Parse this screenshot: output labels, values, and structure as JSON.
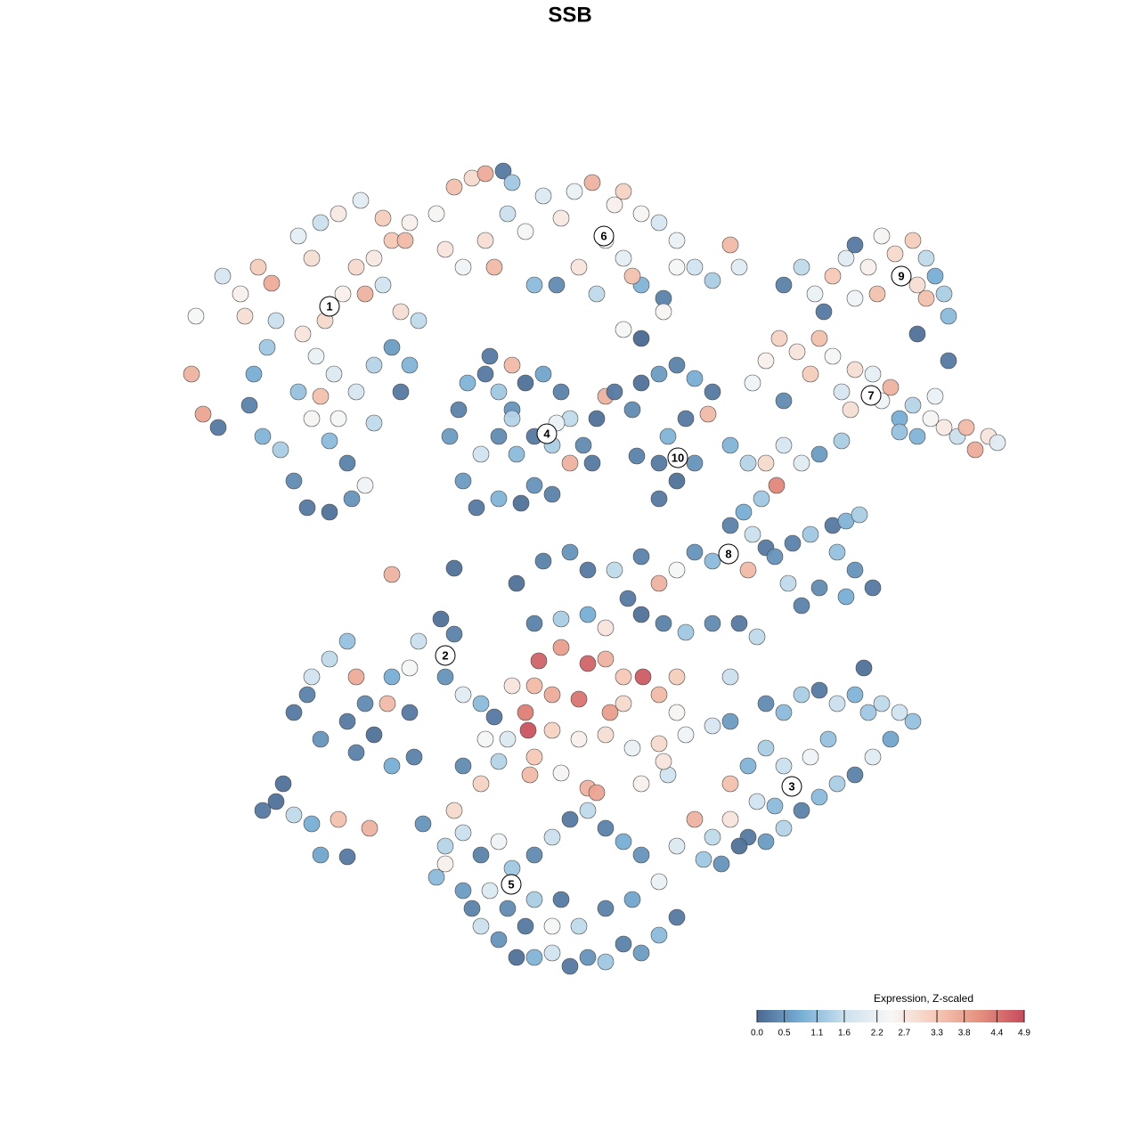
{
  "chart_data": {
    "type": "scatter",
    "title": "SSB",
    "x": [
      2,
      1.5,
      2.8,
      4.5,
      5,
      7,
      7.5,
      9,
      10.5,
      11,
      10,
      8.5,
      8,
      9.5,
      11.5,
      13,
      14.5,
      17,
      19.5,
      21,
      19,
      17,
      15,
      13.5,
      16,
      17.5,
      15.5,
      14,
      16.5,
      18.5,
      20,
      22,
      24,
      26,
      23,
      21,
      25,
      27,
      24,
      26,
      22,
      20,
      18,
      15,
      13.5,
      16,
      18,
      20.5,
      23,
      25.5,
      25,
      22,
      29,
      31,
      33,
      34.5,
      36.5,
      37.5,
      30,
      32,
      34.5,
      35.5,
      37,
      39,
      41,
      43,
      44.5,
      46.5,
      49,
      50,
      52,
      54,
      56,
      58,
      60,
      62,
      63,
      40,
      42.5,
      45,
      47,
      50,
      52,
      54.5,
      56,
      48,
      51,
      68,
      70,
      71.5,
      73.5,
      75,
      76,
      77.5,
      79,
      80.5,
      82.5,
      84,
      85,
      86,
      84,
      83,
      86.5,
      83,
      86.5,
      78.5,
      76,
      72.5,
      64.5,
      66,
      67.5,
      69.5,
      71,
      72,
      73.5,
      74.5,
      76,
      78,
      79,
      80,
      81,
      82.5,
      84.5,
      86,
      87.5,
      88.5,
      89.5,
      91,
      92,
      85,
      83,
      81,
      75.5,
      68,
      30.5,
      31.5,
      32.5,
      34.5,
      36,
      37.5,
      39,
      41,
      43,
      44,
      45.5,
      46.5,
      44,
      42,
      40,
      38,
      36,
      34,
      32,
      33.5,
      36,
      38.5,
      40,
      42,
      37.5,
      42.5,
      48,
      47,
      37.5,
      35,
      49,
      51,
      52,
      54,
      56,
      58,
      60,
      59.5,
      57,
      55,
      54,
      56,
      58,
      54,
      51.5,
      52,
      54.5,
      50,
      62,
      64,
      66,
      67.2,
      65.5,
      63.5,
      62,
      64.5,
      66,
      64,
      67,
      69,
      71,
      73.5,
      75,
      76.5,
      74,
      76,
      78,
      75,
      72,
      70,
      68.5,
      68,
      70,
      72,
      74.5,
      38,
      41,
      44,
      46,
      49,
      52,
      54,
      56,
      58,
      60,
      50.5,
      52,
      54.5,
      57,
      60,
      63,
      65,
      40,
      43,
      46,
      48,
      43,
      46,
      48,
      50,
      52.2,
      40.5,
      37.5,
      40,
      42,
      45,
      48.5,
      50,
      54,
      56,
      56,
      39,
      39.3,
      42,
      45,
      48,
      51,
      54,
      57,
      60,
      62,
      37,
      34.5,
      36,
      40,
      46,
      47,
      52,
      55,
      54.5,
      43,
      39.5,
      34,
      32,
      62,
      13,
      14.5,
      15,
      17,
      19,
      20,
      21,
      19,
      16,
      20,
      22,
      23.5,
      24,
      26,
      27,
      29.5,
      31,
      30,
      32,
      34,
      35.5,
      26,
      26.5,
      24,
      9.5,
      11,
      13,
      15,
      18,
      21.5,
      16,
      19,
      11.8,
      24,
      31,
      66,
      68,
      70,
      72,
      74,
      76,
      77.5,
      79,
      81,
      82.5,
      80,
      78,
      76,
      74,
      72,
      70,
      68,
      66,
      64,
      62,
      60,
      58,
      59,
      61,
      63,
      66,
      64,
      68,
      71,
      73,
      69,
      67,
      77,
      56,
      62,
      65,
      27.5,
      29,
      30,
      31,
      32,
      34,
      36,
      37.5,
      40,
      42,
      44,
      46,
      48,
      50,
      52,
      54,
      56,
      54,
      52,
      50,
      48,
      46,
      44,
      42,
      40,
      38,
      36,
      34,
      33,
      35,
      32,
      37,
      40,
      43,
      45,
      48,
      51,
      42,
      39,
      30
    ],
    "y": [
      74.5,
      68,
      63.5,
      62,
      79,
      77,
      74.5,
      80,
      78.2,
      74,
      71,
      68,
      64.5,
      61,
      59.5,
      56,
      53,
      52.5,
      54,
      55.5,
      58,
      60.5,
      63,
      66,
      65.5,
      68,
      70,
      72.5,
      74,
      77,
      80,
      81,
      83,
      85,
      78,
      77,
      75,
      74,
      71,
      69,
      69,
      66,
      63,
      81,
      83.5,
      85,
      86,
      87.5,
      85.5,
      83,
      66,
      62.5,
      86,
      89,
      90,
      90.5,
      90.8,
      89.5,
      82,
      80,
      83,
      80,
      86,
      84,
      88,
      85.5,
      88.5,
      89.5,
      87,
      88.5,
      86,
      85,
      83,
      80,
      78.5,
      82.5,
      80,
      78,
      78,
      80,
      77,
      81,
      78,
      76.5,
      80,
      83,
      79,
      78,
      80,
      77,
      79,
      81,
      82.5,
      80,
      83.5,
      81.5,
      83,
      81,
      79,
      77,
      76.5,
      78,
      74.5,
      72.5,
      69.5,
      77,
      76.5,
      75,
      67,
      69.5,
      72,
      70.5,
      68,
      72,
      70,
      66,
      68.5,
      68,
      65,
      66.5,
      63,
      64.5,
      63,
      62,
      61,
      62,
      59.5,
      61,
      60.3,
      65.5,
      61,
      61.5,
      64,
      65,
      61,
      64,
      67,
      68,
      66,
      64,
      67,
      68,
      66,
      63,
      60,
      58,
      58,
      60,
      61,
      59,
      61,
      59,
      56,
      53,
      54,
      53.5,
      55.5,
      54.5,
      63,
      62.5,
      65.5,
      63,
      69,
      70,
      66,
      64,
      67,
      68,
      69,
      67.5,
      66,
      63.5,
      63,
      61,
      58,
      56,
      58,
      54,
      58.8,
      72,
      75,
      73,
      60,
      58,
      58,
      55.5,
      54,
      52.5,
      51,
      50,
      48.5,
      46,
      47.5,
      49,
      50,
      51,
      51.5,
      52.2,
      48,
      46,
      44,
      43,
      44,
      42,
      44.5,
      60,
      58,
      59,
      60.5,
      44.5,
      47,
      48,
      46,
      46,
      47.5,
      44.5,
      46,
      48,
      47,
      42.8,
      41,
      40,
      39,
      40,
      40,
      38.5,
      40,
      40.5,
      41,
      39.5,
      37.3,
      35.5,
      36,
      34,
      34,
      35.8,
      33,
      33,
      32,
      31.5,
      30,
      31,
      32,
      34,
      30,
      30,
      28,
      28,
      27,
      27.5,
      26,
      26.5,
      27.5,
      28.5,
      29,
      27,
      27,
      24.5,
      25,
      21.5,
      21,
      22,
      23,
      24.5,
      23.2,
      23,
      22,
      24,
      34,
      30,
      32,
      34,
      36,
      38,
      34,
      31,
      29,
      27,
      25.5,
      27.5,
      31,
      34,
      35,
      38,
      40.5,
      38.8,
      34,
      32,
      31,
      29.5,
      30,
      25,
      24,
      19,
      20,
      18.5,
      17.5,
      18,
      17,
      14,
      13.8,
      22,
      45.5,
      46.2,
      31,
      30,
      32,
      32.5,
      31,
      32,
      30,
      31,
      30,
      29,
      27,
      25,
      23,
      22,
      20.5,
      19,
      17,
      15.5,
      16,
      18,
      16,
      18,
      13.5,
      13,
      15,
      26,
      24,
      24,
      25,
      27,
      21.7,
      19.5,
      35,
      15,
      22,
      20,
      17.5,
      11.5,
      15,
      19,
      16.5,
      14,
      15.5,
      12.5,
      14,
      16,
      18,
      19,
      17,
      15.5,
      14,
      11,
      7,
      5,
      3,
      4,
      2,
      2.5,
      1.5,
      3,
      2.5,
      2.5,
      4.5,
      6,
      8,
      10,
      10,
      8,
      9,
      9,
      6,
      8,
      9,
      6,
      6,
      13
    ],
    "values": [
      2.4,
      3.6,
      3.8,
      0.2,
      1.8,
      2.6,
      2.9,
      3.2,
      3.7,
      1.6,
      1.2,
      0.8,
      0.3,
      0.9,
      1.3,
      0.4,
      0.2,
      0.1,
      0.5,
      2.3,
      0.3,
      1.0,
      2.5,
      1.1,
      3.4,
      1.9,
      2.2,
      2.8,
      3.0,
      2.6,
      3.0,
      2.7,
      3.3,
      2.6,
      1.7,
      3.6,
      2.9,
      1.5,
      0.6,
      0.9,
      1.4,
      1.8,
      2.4,
      2.9,
      2.1,
      1.6,
      2.7,
      2.0,
      3.2,
      3.5,
      0.2,
      1.5,
      2.5,
      3.4,
      3.0,
      3.7,
      0.2,
      1.2,
      2.8,
      2.3,
      2.9,
      3.5,
      1.6,
      2.4,
      1.9,
      2.7,
      2.2,
      3.6,
      2.6,
      3.1,
      2.5,
      1.8,
      2.2,
      1.7,
      1.3,
      3.5,
      2.0,
      1.0,
      0.4,
      2.8,
      1.5,
      2.1,
      0.9,
      0.3,
      2.4,
      2.6,
      3.4,
      0.3,
      1.5,
      2.2,
      3.3,
      2.0,
      0.2,
      2.6,
      2.5,
      3.0,
      3.2,
      1.5,
      0.8,
      1.3,
      3.4,
      2.9,
      1.0,
      0.1,
      0.2,
      3.4,
      2.3,
      0.2,
      2.3,
      2.6,
      3.1,
      2.8,
      3.2,
      3.4,
      2.4,
      1.8,
      2.9,
      2.1,
      2.3,
      3.6,
      0.8,
      1.4,
      2.5,
      2.7,
      1.6,
      3.5,
      3.7,
      2.8,
      2.0,
      2.2,
      0.9,
      1.1,
      2.9,
      0.4,
      0.6,
      0.3,
      0.9,
      0.2,
      1.2,
      0.5,
      0.1,
      0.7,
      0.3,
      1.5,
      0.4,
      0.2,
      3.6,
      1.3,
      0.2,
      1.0,
      0.4,
      1.7,
      0.6,
      0.2,
      0.9,
      0.1,
      0.5,
      0.3,
      1.4,
      2.2,
      3.6,
      0.1,
      3.5,
      0.2,
      0.2,
      0.4,
      0.1,
      0.6,
      0.3,
      0.8,
      0.2,
      3.5,
      0.2,
      0.9,
      0.2,
      0.1,
      0.5,
      0.2,
      0.3,
      0.0,
      2.5,
      2.4,
      0.9,
      1.4,
      3.0,
      4.2,
      1.2,
      0.8,
      0.3,
      1.6,
      0.2,
      3.5,
      0.5,
      0.3,
      1.2,
      0.2,
      0.9,
      1.3,
      1.1,
      0.5,
      0.2,
      0.8,
      0.4,
      0.3,
      1.5,
      1.8,
      2.0,
      0.6,
      1.3,
      0.1,
      0.3,
      0.5,
      0.2,
      1.5,
      0.3,
      3.6,
      2.4,
      0.5,
      1.0,
      0.2,
      0.1,
      0.3,
      1.2,
      0.4,
      0.2,
      1.5,
      0.3,
      1.3,
      0.8,
      2.8,
      3.9,
      4.6,
      3.6,
      3.3,
      4.7,
      4.6,
      2.8,
      3.5,
      3.7,
      4.4,
      3.9,
      3.0,
      3.5,
      3.2,
      2.5,
      4.3,
      4.8,
      3.1,
      2.6,
      2.9,
      2.2,
      3.0,
      2.3,
      1.8,
      0.6,
      1.9,
      2.4,
      1.4,
      3.3,
      3.6,
      3.8,
      2.6,
      1.7,
      2.8,
      2.5,
      3.5,
      3.1,
      0.4,
      1.6,
      0.2,
      0.3,
      1.7,
      1.5,
      1.1,
      3.7,
      0.4,
      0.2,
      0.5,
      0.3,
      0.1,
      3.5,
      0.8,
      2.4,
      1.6,
      0.1,
      0.3,
      0.5,
      2.0,
      1.0,
      0.2,
      0.2,
      0.3,
      0.8,
      0.2,
      0.1,
      1.5,
      0.8,
      3.4,
      3.6,
      0.7,
      0.2,
      0.1,
      3.6,
      0.1,
      0.4,
      1.0,
      1.3,
      0.2,
      1.6,
      0.9,
      1.2,
      1.5,
      1.7,
      1.1,
      0.7,
      2.0,
      0.3,
      1.3,
      1.0,
      0.3,
      1.4,
      0.6,
      0.2,
      2.8,
      1.5,
      3.6,
      1.2,
      0.5,
      0.1,
      1.3,
      0.9,
      1.6,
      2.3,
      1.1,
      2.2,
      1.0,
      0.1,
      1.9,
      3.4,
      1.7,
      0.5,
      1.0,
      1.4,
      3.0,
      1.6,
      0.3,
      2.3,
      1.2,
      0.4,
      1.6,
      0.2,
      1.5,
      0.3,
      0.8,
      0.5,
      2.2,
      0.2,
      1.0,
      0.6,
      0.3,
      1.2,
      0.5,
      0.2,
      1.7,
      0.9,
      0.1,
      0.5,
      1.6,
      0.3,
      1.9,
      0.6,
      0.4,
      1.3,
      0.2,
      1.5,
      0.3,
      0.7,
      2.4,
      0.2,
      2.6
    ],
    "clusters": {
      "labels": [
        "1",
        "6",
        "9",
        "7",
        "4",
        "10",
        "8",
        "2",
        "3",
        "5"
      ],
      "x": [
        17,
        47.8,
        81.2,
        77.8,
        41.4,
        56.1,
        61.8,
        30,
        68.9,
        37.4
      ],
      "y": [
        75.6,
        83.5,
        79,
        65.6,
        61.3,
        58.6,
        47.8,
        36.4,
        21.7,
        10.7
      ]
    },
    "colorbar": {
      "title": "Expression, Z-scaled",
      "clim": [
        0,
        4.9
      ],
      "ticks": [
        {
          "value": 0,
          "label": "0.0"
        },
        0.5,
        1.1,
        1.6,
        2.2,
        2.7,
        3.3,
        3.8,
        4.4,
        4.9
      ],
      "colormap": [
        "#4a6890",
        "#78afd6",
        "#cde2ee",
        "#f7f7f7",
        "#f6cab7",
        "#e5907f",
        "#c64b5b"
      ]
    }
  }
}
